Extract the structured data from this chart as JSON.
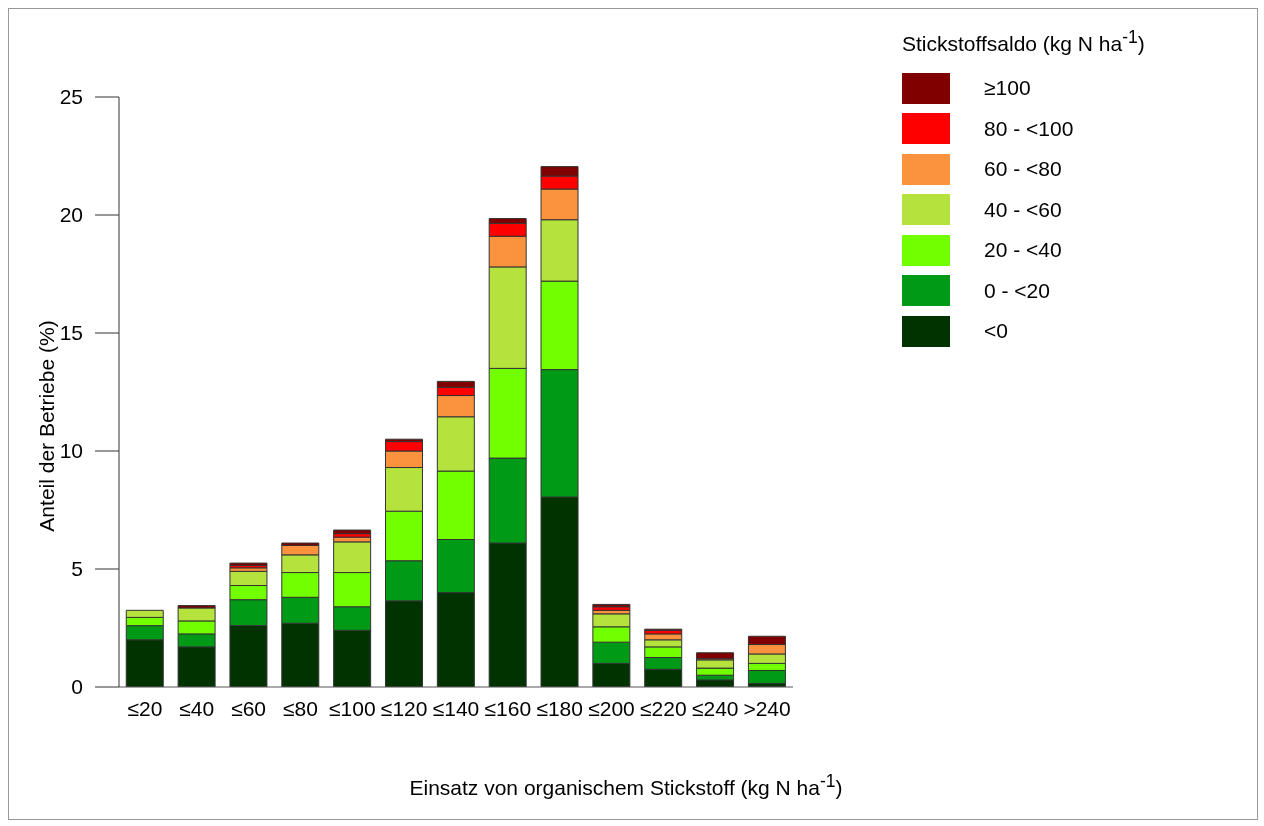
{
  "chart_data": {
    "type": "bar",
    "stacked": true,
    "xlabel": "Einsatz von organischem Stickstoff (kg N ha$^{-1}$)",
    "ylabel": "Anteil der Betriebe (%)",
    "legend_title": "Stickstoffsaldo (kg N ha$^{-1}$)",
    "legend": "top right",
    "grid": false,
    "categories": [
      "≤20",
      "≤40",
      "≤60",
      "≤80",
      "≤100",
      "≤120",
      "≤140",
      "≤160",
      "≤180",
      "≤200",
      "≤220",
      "≤240",
      ">240"
    ],
    "ylim": [
      0,
      25
    ],
    "yticks": [
      0,
      5,
      10,
      15,
      20,
      25
    ],
    "series": [
      {
        "name": "<0",
        "color": "#003300",
        "values": [
          2.0,
          1.7,
          2.6,
          2.7,
          2.4,
          3.65,
          4.0,
          6.1,
          8.05,
          1.0,
          0.75,
          0.3,
          0.15
        ]
      },
      {
        "name": "0 - <20",
        "color": "#009a17",
        "values": [
          0.6,
          0.55,
          1.1,
          1.1,
          1.0,
          1.7,
          2.25,
          3.6,
          5.4,
          0.9,
          0.5,
          0.2,
          0.55
        ]
      },
      {
        "name": "20 - <40",
        "color": "#72ff00",
        "values": [
          0.35,
          0.55,
          0.6,
          1.05,
          1.45,
          2.1,
          2.9,
          3.8,
          3.75,
          0.65,
          0.45,
          0.3,
          0.3
        ]
      },
      {
        "name": "40 - <60",
        "color": "#b5e23c",
        "values": [
          0.3,
          0.55,
          0.6,
          0.75,
          1.3,
          1.85,
          2.3,
          4.3,
          2.6,
          0.55,
          0.3,
          0.35,
          0.4
        ]
      },
      {
        "name": "60 - <80",
        "color": "#fb923d",
        "values": [
          0,
          0,
          0.15,
          0.4,
          0.2,
          0.7,
          0.9,
          1.3,
          1.3,
          0.15,
          0.25,
          0.05,
          0.4
        ]
      },
      {
        "name": "80 - <100",
        "color": "#ff0000",
        "values": [
          0,
          0,
          0.1,
          null,
          0.15,
          0.4,
          0.35,
          0.55,
          0.55,
          0.15,
          0.15,
          0,
          0
        ]
      },
      {
        "name": "≥100",
        "color": "#800000",
        "values": [
          0,
          0.1,
          0.1,
          0.1,
          0.15,
          0.1,
          0.25,
          0.2,
          0.4,
          0.1,
          0.05,
          0.25,
          0.35
        ]
      }
    ]
  }
}
